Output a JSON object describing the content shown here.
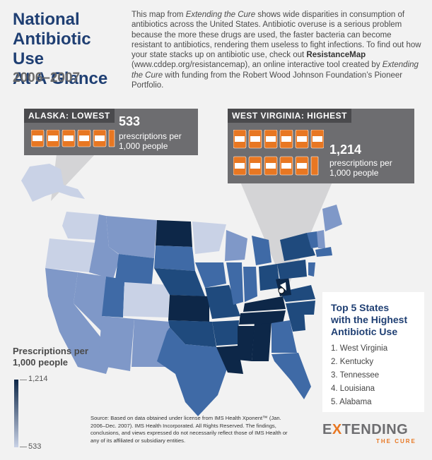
{
  "header": {
    "title_lines": [
      "National",
      "Antibiotic Use",
      "At A Glance"
    ],
    "years": "2006–2007",
    "intro_parts": [
      "This map from ",
      "Extending the Cure",
      " shows wide disparities in consumption of antibiotics across the United States. Antibiotic overuse is a serious problem because the more these drugs are used, the faster bacteria can become resistant to antibiotics, rendering them useless to fight infections. To find out how your state stacks up on antibiotic use, check out ",
      "ResistanceMap",
      " (www.cddep.org/resistancemap), an online interactive tool created by ",
      "Extending the Cure",
      " with funding from the Robert Wood Johnson Foundation’s Pioneer Portfolio."
    ]
  },
  "callouts": {
    "lowest": {
      "label": "ALASKA: LOWEST",
      "value": "533",
      "unit_lines": [
        "prescriptions per",
        "1,000 people"
      ]
    },
    "highest": {
      "label": "WEST VIRGINIA: HIGHEST",
      "value": "1,214",
      "unit_lines": [
        "prescriptions per",
        "1,000 people"
      ]
    }
  },
  "top5": {
    "title_lines": [
      "Top 5 States",
      "with the Highest",
      "Antibiotic Use"
    ],
    "items": [
      "1.  West Virginia",
      "2.  Kentucky",
      "3.  Tennessee",
      "4.  Louisiana",
      "5.  Alabama"
    ]
  },
  "legend": {
    "title_lines": [
      "Prescriptions per",
      "1,000 people"
    ],
    "max": "1,214",
    "min": "533"
  },
  "source": "Source: Based on data obtained under license from IMS Health Xponent™ (Jan. 2006–Dec. 2007). IMS Health Incorporated. All Rights Reserved. The findings, conclusions, and views expressed do not necessarily reflect those of IMS Health or any of its affiliated or subsidiary entities.",
  "logo": {
    "pre": "E",
    "x": "X",
    "post": "TENDING",
    "sub": "THE CURE"
  },
  "colors": {
    "darkest": "#0d2748",
    "dark": "#1f4a7d",
    "mid": "#3f6aa6",
    "light": "#7f98c8",
    "lightest": "#c9d2e6",
    "callout_bg": "#6d6d70",
    "title_blue": "#1f3f73",
    "pill_orange": "#e87722"
  }
}
